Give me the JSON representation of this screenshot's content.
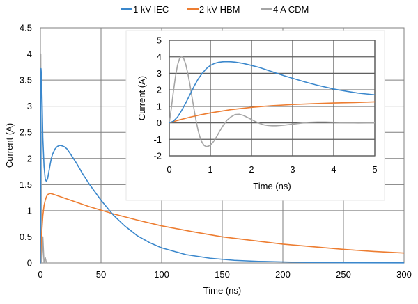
{
  "chart_data": [
    {
      "id": "main",
      "type": "line",
      "title": "",
      "xlabel": "Time (ns)",
      "ylabel": "Current (A)",
      "xlim": [
        0,
        300
      ],
      "ylim": [
        0,
        4.5
      ],
      "xticks": [
        0,
        50,
        100,
        150,
        200,
        250,
        300
      ],
      "yticks": [
        0,
        0.5,
        1,
        1.5,
        2,
        2.5,
        3,
        3.5,
        4,
        4.5
      ],
      "xtick_labels": [
        "0",
        "50",
        "100",
        "150",
        "200",
        "250",
        "300"
      ],
      "ytick_labels": [
        "0",
        "0.5",
        "1",
        "1.5",
        "2",
        "2.5",
        "3",
        "3.5",
        "4",
        "4.5"
      ],
      "grid": true,
      "legend": "top-center",
      "series": [
        {
          "name": "1 kV IEC",
          "color": "#3a87cc",
          "x": [
            0,
            0.5,
            1,
            1.5,
            2,
            3,
            4,
            5,
            6,
            7,
            8,
            9,
            10,
            12,
            14,
            16,
            18,
            20,
            22,
            25,
            30,
            35,
            40,
            50,
            60,
            70,
            80,
            90,
            100,
            120,
            140,
            160,
            180,
            200,
            220,
            250,
            300
          ],
          "y": [
            0,
            3.72,
            3.55,
            3.0,
            2.4,
            1.85,
            1.6,
            1.56,
            1.62,
            1.75,
            1.88,
            2.0,
            2.08,
            2.18,
            2.23,
            2.25,
            2.24,
            2.22,
            2.18,
            2.08,
            1.9,
            1.7,
            1.52,
            1.2,
            0.92,
            0.7,
            0.52,
            0.39,
            0.29,
            0.16,
            0.09,
            0.05,
            0.03,
            0.02,
            0.01,
            0.005,
            0.002
          ]
        },
        {
          "name": "2 kV HBM",
          "color": "#ed7d31",
          "x": [
            0,
            0.5,
            1,
            2,
            3,
            4,
            5,
            6,
            8,
            10,
            15,
            20,
            30,
            40,
            50,
            60,
            80,
            100,
            125,
            150,
            175,
            200,
            225,
            250,
            275,
            300
          ],
          "y": [
            0,
            0.3,
            0.55,
            0.9,
            1.1,
            1.2,
            1.27,
            1.31,
            1.33,
            1.32,
            1.28,
            1.24,
            1.16,
            1.08,
            1.01,
            0.94,
            0.82,
            0.71,
            0.6,
            0.5,
            0.43,
            0.36,
            0.31,
            0.26,
            0.22,
            0.19
          ]
        },
        {
          "name": "4 A CDM",
          "color": "#a5a5a5",
          "x": [
            0,
            0.3,
            0.8,
            1.2,
            2,
            3,
            4,
            5,
            6
          ],
          "y": [
            0,
            4.0,
            0,
            0,
            0.5,
            0,
            0.1,
            0,
            0
          ]
        }
      ]
    },
    {
      "id": "inset",
      "type": "line",
      "title": "",
      "xlabel": "Time (ns)",
      "ylabel": "Current (A)",
      "xlim": [
        0,
        5
      ],
      "ylim": [
        -2,
        5
      ],
      "xticks": [
        0,
        1,
        2,
        3,
        4,
        5
      ],
      "yticks": [
        -2,
        -1,
        0,
        1,
        2,
        3,
        4,
        5
      ],
      "xtick_labels": [
        "0",
        "1",
        "2",
        "3",
        "4",
        "5"
      ],
      "ytick_labels": [
        "-2",
        "-1",
        "0",
        "1",
        "2",
        "3",
        "4",
        "5"
      ],
      "grid": true,
      "series": [
        {
          "name": "1 kV IEC",
          "color": "#3a87cc",
          "x": [
            0,
            0.1,
            0.2,
            0.3,
            0.4,
            0.5,
            0.6,
            0.7,
            0.8,
            0.9,
            1.0,
            1.1,
            1.2,
            1.3,
            1.4,
            1.5,
            1.6,
            1.8,
            2.0,
            2.2,
            2.5,
            2.8,
            3.0,
            3.3,
            3.6,
            4.0,
            4.3,
            4.6,
            5.0
          ],
          "y": [
            0,
            0.1,
            0.35,
            0.75,
            1.2,
            1.7,
            2.2,
            2.65,
            3.0,
            3.28,
            3.48,
            3.6,
            3.67,
            3.7,
            3.71,
            3.7,
            3.68,
            3.6,
            3.48,
            3.35,
            3.1,
            2.85,
            2.7,
            2.48,
            2.28,
            2.05,
            1.92,
            1.8,
            1.7
          ]
        },
        {
          "name": "2 kV HBM",
          "color": "#ed7d31",
          "x": [
            0,
            0.25,
            0.5,
            0.75,
            1.0,
            1.5,
            2.0,
            2.5,
            3.0,
            3.5,
            4.0,
            4.5,
            5.0
          ],
          "y": [
            0,
            0.18,
            0.34,
            0.48,
            0.6,
            0.8,
            0.94,
            1.04,
            1.11,
            1.16,
            1.2,
            1.23,
            1.27
          ]
        },
        {
          "name": "4 A CDM",
          "color": "#a5a5a5",
          "x": [
            0,
            0.05,
            0.1,
            0.15,
            0.2,
            0.25,
            0.3,
            0.35,
            0.4,
            0.45,
            0.5,
            0.55,
            0.6,
            0.65,
            0.7,
            0.75,
            0.8,
            0.85,
            0.9,
            0.95,
            1.0,
            1.05,
            1.1,
            1.15,
            1.2,
            1.3,
            1.4,
            1.5,
            1.6,
            1.7,
            1.8,
            1.9,
            2.0,
            2.1,
            2.2,
            2.3,
            2.4,
            2.5,
            2.6,
            2.7,
            2.8,
            3.0,
            3.2,
            3.4,
            3.6,
            3.8,
            4.0,
            4.3,
            4.6,
            5.0
          ],
          "y": [
            0,
            0.9,
            1.9,
            2.8,
            3.5,
            3.9,
            4.02,
            3.9,
            3.55,
            3.0,
            2.35,
            1.6,
            0.85,
            0.15,
            -0.45,
            -0.9,
            -1.2,
            -1.38,
            -1.44,
            -1.42,
            -1.35,
            -1.22,
            -1.05,
            -0.85,
            -0.62,
            -0.2,
            0.15,
            0.36,
            0.5,
            0.52,
            0.45,
            0.33,
            0.2,
            0.07,
            -0.04,
            -0.12,
            -0.16,
            -0.18,
            -0.18,
            -0.16,
            -0.14,
            -0.08,
            -0.02,
            0.03,
            0.05,
            0.05,
            0.03,
            0.0,
            -0.01,
            0.0
          ]
        }
      ]
    }
  ]
}
